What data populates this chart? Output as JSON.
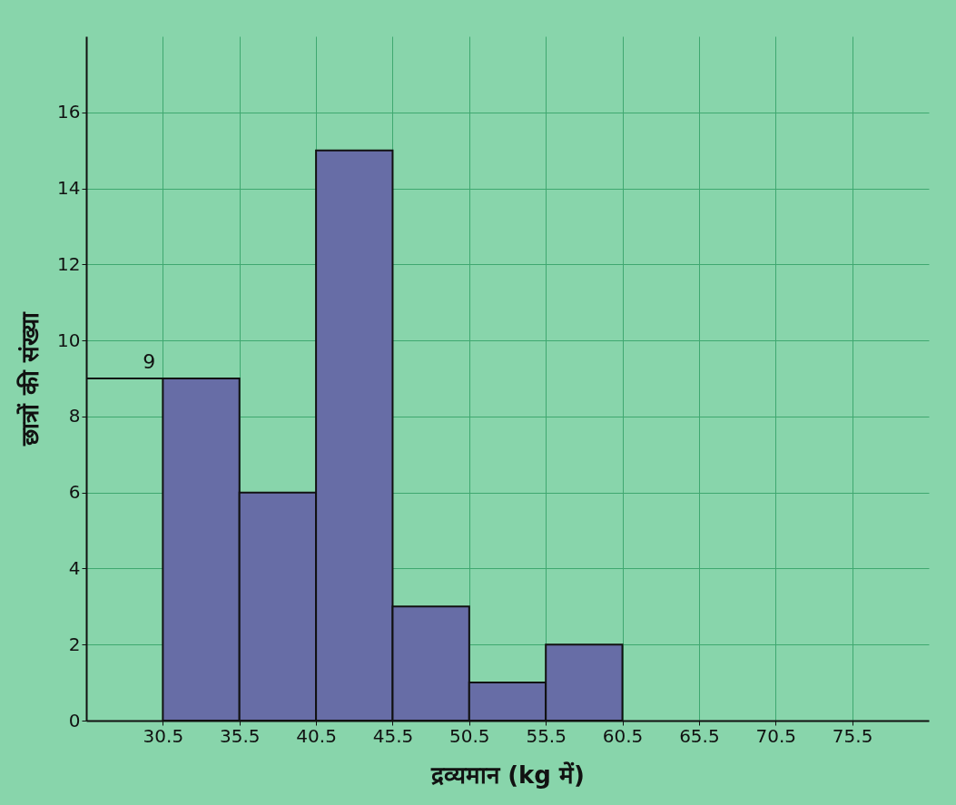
{
  "chart_data": {
    "type": "histogram",
    "xlabel": "द्रव्यमान (kg में)",
    "ylabel": "छात्रों की संख्या",
    "bins": [
      30.5,
      35.5,
      40.5,
      45.5,
      50.5,
      55.5,
      60.5
    ],
    "values": [
      9,
      6,
      15,
      3,
      1,
      2
    ],
    "color": "#676da6",
    "xlim": [
      25.5,
      80.5
    ],
    "xticks": [
      30.5,
      35.5,
      40.5,
      45.5,
      50.5,
      55.5,
      60.5,
      65.5,
      70.5,
      75.5
    ],
    "ylim": [
      0,
      18
    ],
    "yticks": [
      0,
      2,
      4,
      6,
      8,
      10,
      12,
      14,
      16
    ],
    "grid": true,
    "ref_lines": [
      {
        "axis": "y",
        "value": 9,
        "label": "9"
      }
    ]
  }
}
